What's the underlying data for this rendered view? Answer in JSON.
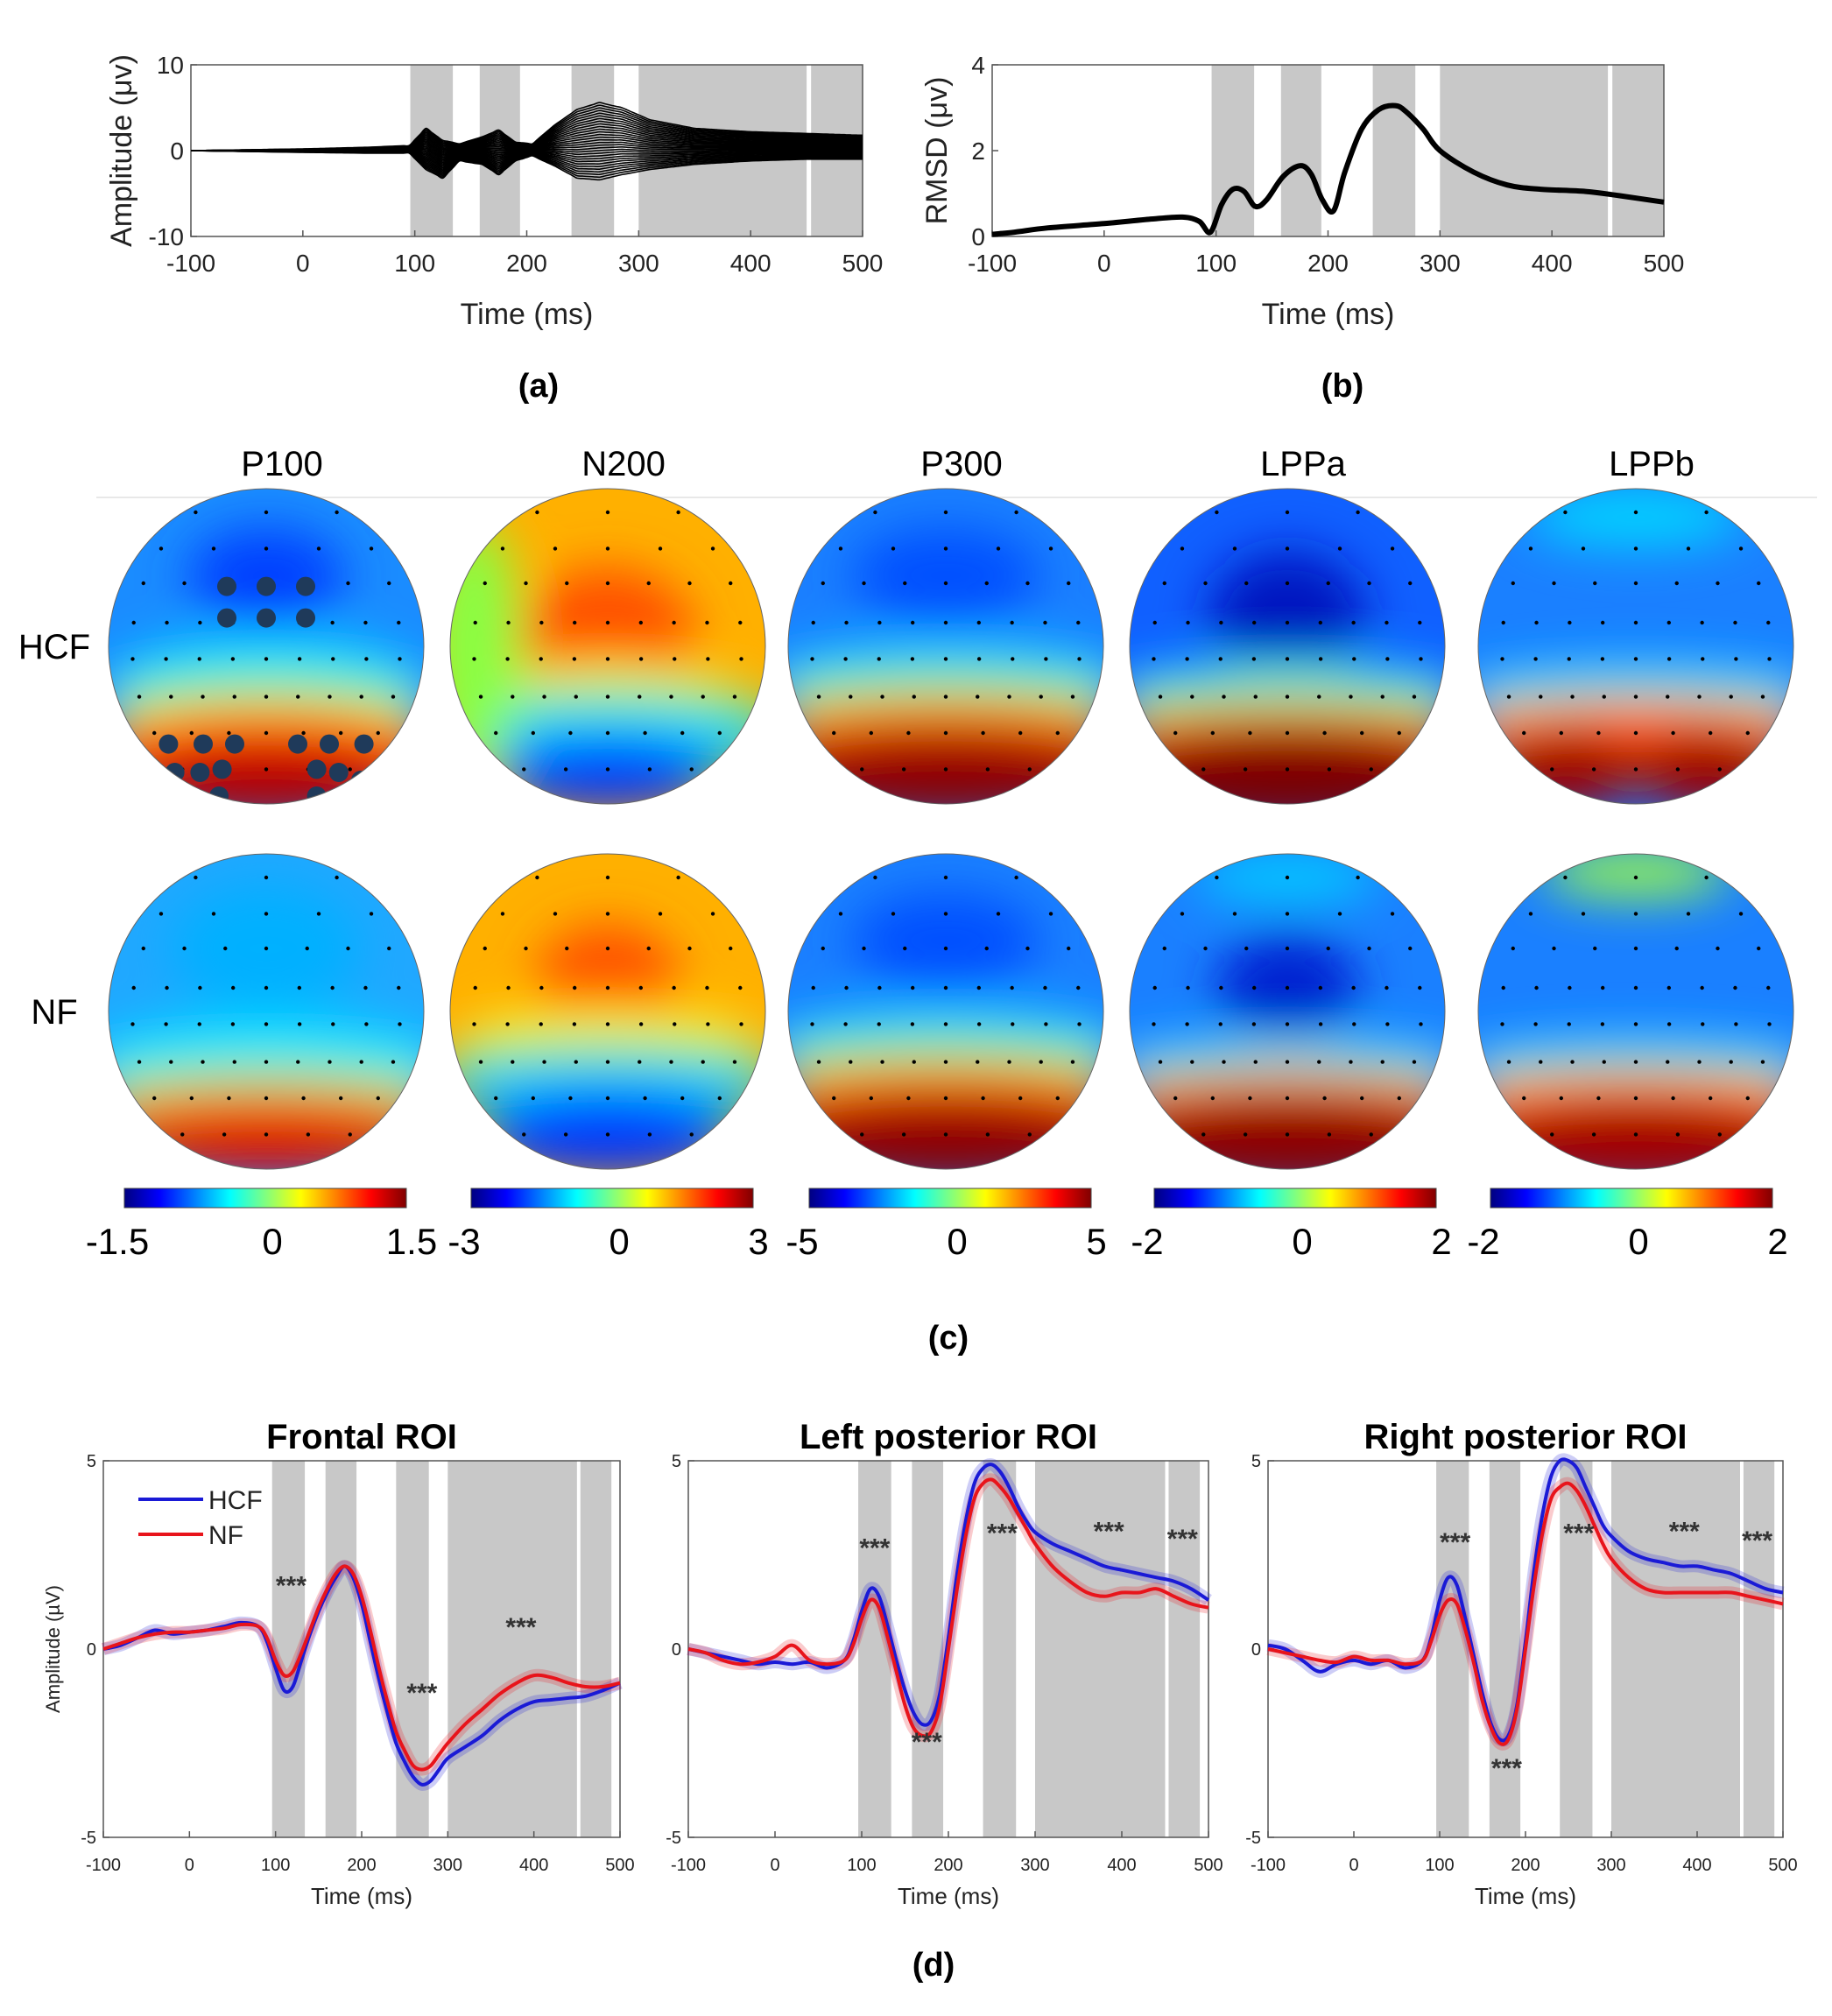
{
  "colors": {
    "hcf": "#1a1ad6",
    "nf": "#e8141b",
    "black": "#000000",
    "shade": "#c8c8c8",
    "jet_stops": [
      "#000080",
      "#0000ff",
      "#0080ff",
      "#00ffff",
      "#80ff80",
      "#ffff00",
      "#ff8000",
      "#ff0000",
      "#800000"
    ],
    "electrode": "#1f3a5a"
  },
  "panel_labels": {
    "a": "(a)",
    "b": "(b)",
    "c": "(c)",
    "d": "(d)"
  },
  "chart_data": [
    {
      "id": "a",
      "type": "line",
      "title": "",
      "xlabel": "Time (ms)",
      "ylabel": "Amplitude (μv)",
      "xlim": [
        -100,
        500
      ],
      "ylim": [
        -10,
        10
      ],
      "xticks": [
        -100,
        0,
        100,
        200,
        300,
        400,
        500
      ],
      "yticks": [
        -10,
        0,
        10
      ],
      "shaded_windows": [
        [
          96,
          134
        ],
        [
          158,
          194
        ],
        [
          240,
          278
        ],
        [
          300,
          450
        ],
        [
          454,
          500
        ]
      ],
      "description_series": "butterfly plot of all channels",
      "channel_count": 30,
      "envelope": {
        "x": [
          -100,
          0,
          60,
          95,
          110,
          125,
          140,
          160,
          175,
          190,
          205,
          225,
          245,
          265,
          285,
          310,
          350,
          400,
          450,
          500
        ],
        "upper": [
          0,
          0.2,
          0.4,
          0.6,
          2.6,
          1.2,
          0.8,
          1.6,
          2.4,
          1.0,
          0.8,
          3.0,
          4.8,
          5.6,
          5.0,
          3.6,
          2.6,
          2.2,
          2.0,
          1.8
        ],
        "lower": [
          0,
          -0.2,
          -0.3,
          -0.3,
          -2.2,
          -3.2,
          -1.2,
          -1.6,
          -2.8,
          -1.2,
          -0.6,
          -1.8,
          -3.2,
          -3.4,
          -2.8,
          -2.2,
          -1.6,
          -1.2,
          -1.0,
          -1.0
        ]
      }
    },
    {
      "id": "b",
      "type": "line",
      "title": "",
      "xlabel": "Time (ms)",
      "ylabel": "RMSD (μv)",
      "xlim": [
        -100,
        500
      ],
      "ylim": [
        0,
        4
      ],
      "xticks": [
        -100,
        0,
        100,
        200,
        300,
        400,
        500
      ],
      "yticks": [
        0,
        2,
        4
      ],
      "shaded_windows": [
        [
          96,
          134
        ],
        [
          158,
          194
        ],
        [
          240,
          278
        ],
        [
          300,
          450
        ],
        [
          454,
          500
        ]
      ],
      "series": [
        {
          "name": "RMSD",
          "x": [
            -100,
            -80,
            -50,
            0,
            40,
            70,
            85,
            95,
            105,
            115,
            125,
            135,
            145,
            160,
            175,
            185,
            195,
            205,
            215,
            230,
            245,
            260,
            270,
            285,
            300,
            330,
            360,
            390,
            430,
            460,
            500
          ],
          "y": [
            0.05,
            0.1,
            0.2,
            0.3,
            0.4,
            0.45,
            0.35,
            0.1,
            0.75,
            1.1,
            1.05,
            0.7,
            0.85,
            1.4,
            1.65,
            1.45,
            0.85,
            0.6,
            1.5,
            2.5,
            2.95,
            3.05,
            2.9,
            2.5,
            2.0,
            1.5,
            1.2,
            1.1,
            1.05,
            0.95,
            0.8
          ]
        }
      ]
    },
    {
      "id": "c",
      "type": "heatmap",
      "title": "",
      "columns": [
        "P100",
        "N200",
        "P300",
        "LPPa",
        "LPPb"
      ],
      "rows": [
        "HCF",
        "NF"
      ],
      "colorbars": [
        {
          "min": -1.5,
          "max": 1.5,
          "ticks": [
            "-1.5",
            "0",
            "1.5"
          ]
        },
        {
          "min": -3,
          "max": 3,
          "ticks": [
            "-3",
            "0",
            "3"
          ]
        },
        {
          "min": -5,
          "max": 5,
          "ticks": [
            "-5",
            "0",
            "5"
          ]
        },
        {
          "min": -2,
          "max": 2,
          "ticks": [
            "-2",
            "0",
            "2"
          ]
        },
        {
          "min": -2,
          "max": 2,
          "ticks": [
            "-2",
            "0",
            "2"
          ]
        }
      ]
    },
    {
      "id": "d1",
      "type": "line",
      "title": "Frontal ROI",
      "xlabel": "Time (ms)",
      "ylabel": "Amplitude (µV)",
      "xlim": [
        -100,
        500
      ],
      "ylim": [
        -5,
        5
      ],
      "xticks": [
        -100,
        0,
        100,
        200,
        300,
        400,
        500
      ],
      "yticks": [
        -5,
        0,
        5
      ],
      "shaded_windows": [
        [
          96,
          134
        ],
        [
          158,
          194
        ],
        [
          240,
          278
        ],
        [
          300,
          450
        ],
        [
          454,
          490
        ]
      ],
      "legend": [
        "HCF",
        "NF"
      ],
      "significance": [
        {
          "x": 118,
          "y": 1.45,
          "label": "***"
        },
        {
          "x": 270,
          "y": -1.4,
          "label": "***"
        },
        {
          "x": 385,
          "y": 0.35,
          "label": "***"
        }
      ],
      "series": [
        {
          "name": "HCF",
          "x": [
            -100,
            -80,
            -60,
            -40,
            -20,
            0,
            20,
            40,
            60,
            80,
            90,
            100,
            110,
            120,
            130,
            140,
            150,
            160,
            170,
            180,
            190,
            200,
            210,
            220,
            230,
            240,
            250,
            260,
            270,
            280,
            290,
            300,
            320,
            340,
            360,
            380,
            400,
            420,
            440,
            460,
            480,
            500
          ],
          "y": [
            0,
            0.1,
            0.3,
            0.5,
            0.4,
            0.45,
            0.5,
            0.6,
            0.7,
            0.6,
            0.2,
            -0.5,
            -1.1,
            -1.0,
            -0.3,
            0.4,
            1.0,
            1.5,
            1.9,
            2.2,
            1.9,
            1.2,
            0.2,
            -0.8,
            -1.7,
            -2.5,
            -3.0,
            -3.4,
            -3.6,
            -3.5,
            -3.2,
            -2.9,
            -2.6,
            -2.3,
            -1.9,
            -1.6,
            -1.4,
            -1.35,
            -1.3,
            -1.25,
            -1.1,
            -0.9
          ]
        },
        {
          "name": "NF",
          "x": [
            -100,
            -80,
            -60,
            -40,
            -20,
            0,
            20,
            40,
            60,
            80,
            90,
            100,
            110,
            120,
            130,
            140,
            150,
            160,
            170,
            180,
            190,
            200,
            210,
            220,
            230,
            240,
            250,
            260,
            270,
            280,
            290,
            300,
            320,
            340,
            360,
            380,
            400,
            420,
            440,
            460,
            480,
            500
          ],
          "y": [
            0,
            0.15,
            0.3,
            0.4,
            0.45,
            0.45,
            0.5,
            0.55,
            0.65,
            0.6,
            0.3,
            -0.3,
            -0.7,
            -0.6,
            -0.1,
            0.5,
            1.1,
            1.6,
            2.0,
            2.2,
            2.0,
            1.4,
            0.5,
            -0.5,
            -1.4,
            -2.2,
            -2.7,
            -3.1,
            -3.2,
            -3.1,
            -2.8,
            -2.5,
            -2.0,
            -1.6,
            -1.2,
            -0.9,
            -0.7,
            -0.75,
            -0.9,
            -1.0,
            -1.0,
            -0.9
          ]
        }
      ]
    },
    {
      "id": "d2",
      "type": "line",
      "title": "Left posterior ROI",
      "xlabel": "Time (ms)",
      "ylabel": "",
      "xlim": [
        -100,
        500
      ],
      "ylim": [
        -5,
        5
      ],
      "xticks": [
        -100,
        0,
        100,
        200,
        300,
        400,
        500
      ],
      "yticks": [
        -5,
        0,
        5
      ],
      "shaded_windows": [
        [
          96,
          134
        ],
        [
          158,
          194
        ],
        [
          240,
          278
        ],
        [
          300,
          450
        ],
        [
          454,
          490
        ]
      ],
      "significance": [
        {
          "x": 115,
          "y": 2.45,
          "label": "***"
        },
        {
          "x": 175,
          "y": -2.7,
          "label": "***"
        },
        {
          "x": 262,
          "y": 2.85,
          "label": "***"
        },
        {
          "x": 385,
          "y": 2.9,
          "label": "***"
        },
        {
          "x": 470,
          "y": 2.7,
          "label": "***"
        }
      ],
      "series": [
        {
          "name": "HCF",
          "x": [
            -100,
            -80,
            -60,
            -40,
            -20,
            0,
            20,
            40,
            60,
            80,
            90,
            100,
            110,
            120,
            130,
            140,
            150,
            160,
            170,
            180,
            190,
            200,
            210,
            220,
            230,
            240,
            250,
            260,
            270,
            280,
            290,
            300,
            320,
            340,
            360,
            380,
            400,
            420,
            440,
            460,
            480,
            500
          ],
          "y": [
            0,
            -0.1,
            -0.2,
            -0.3,
            -0.4,
            -0.35,
            -0.4,
            -0.35,
            -0.5,
            -0.3,
            0.2,
            1.0,
            1.6,
            1.4,
            0.6,
            -0.3,
            -1.1,
            -1.7,
            -2.0,
            -1.9,
            -1.2,
            0.3,
            2.0,
            3.4,
            4.4,
            4.8,
            4.9,
            4.7,
            4.3,
            3.8,
            3.4,
            3.1,
            2.8,
            2.6,
            2.4,
            2.2,
            2.1,
            2.0,
            1.9,
            1.8,
            1.6,
            1.3
          ]
        },
        {
          "name": "NF",
          "x": [
            -100,
            -80,
            -60,
            -40,
            -20,
            0,
            20,
            40,
            60,
            80,
            90,
            100,
            110,
            120,
            130,
            140,
            150,
            160,
            170,
            180,
            190,
            200,
            210,
            220,
            230,
            240,
            250,
            260,
            270,
            280,
            290,
            300,
            320,
            340,
            360,
            380,
            400,
            420,
            440,
            460,
            480,
            500
          ],
          "y": [
            0,
            -0.1,
            -0.3,
            -0.4,
            -0.35,
            -0.2,
            0.1,
            -0.3,
            -0.4,
            -0.3,
            0.1,
            0.8,
            1.3,
            1.1,
            0.3,
            -0.6,
            -1.5,
            -2.1,
            -2.3,
            -2.2,
            -1.5,
            0.0,
            1.6,
            3.0,
            4.0,
            4.4,
            4.5,
            4.3,
            4.0,
            3.6,
            3.2,
            2.8,
            2.2,
            1.8,
            1.5,
            1.4,
            1.5,
            1.5,
            1.6,
            1.4,
            1.2,
            1.1
          ]
        }
      ]
    },
    {
      "id": "d3",
      "type": "line",
      "title": "Right posterior ROI",
      "xlabel": "Time (ms)",
      "ylabel": "",
      "xlim": [
        -100,
        500
      ],
      "ylim": [
        -5,
        5
      ],
      "xticks": [
        -100,
        0,
        100,
        200,
        300,
        400,
        500
      ],
      "yticks": [
        -5,
        0,
        5
      ],
      "shaded_windows": [
        [
          96,
          134
        ],
        [
          158,
          194
        ],
        [
          240,
          278
        ],
        [
          300,
          450
        ],
        [
          454,
          490
        ]
      ],
      "significance": [
        {
          "x": 118,
          "y": 2.6,
          "label": "***"
        },
        {
          "x": 178,
          "y": -3.4,
          "label": "***"
        },
        {
          "x": 262,
          "y": 2.85,
          "label": "***"
        },
        {
          "x": 385,
          "y": 2.9,
          "label": "***"
        },
        {
          "x": 470,
          "y": 2.65,
          "label": "***"
        }
      ],
      "series": [
        {
          "name": "HCF",
          "x": [
            -100,
            -80,
            -60,
            -40,
            -20,
            0,
            20,
            40,
            60,
            80,
            90,
            100,
            110,
            120,
            130,
            140,
            150,
            160,
            170,
            180,
            190,
            200,
            210,
            220,
            230,
            240,
            250,
            260,
            270,
            280,
            290,
            300,
            320,
            340,
            360,
            380,
            400,
            420,
            440,
            460,
            480,
            500
          ],
          "y": [
            0.1,
            0.0,
            -0.3,
            -0.6,
            -0.4,
            -0.3,
            -0.4,
            -0.3,
            -0.5,
            -0.3,
            0.3,
            1.3,
            1.9,
            1.7,
            0.8,
            -0.2,
            -1.2,
            -2.0,
            -2.4,
            -2.3,
            -1.5,
            0.2,
            2.1,
            3.6,
            4.6,
            5.0,
            5.0,
            4.8,
            4.3,
            3.8,
            3.3,
            3.0,
            2.6,
            2.4,
            2.3,
            2.2,
            2.2,
            2.1,
            2.0,
            1.8,
            1.6,
            1.5
          ]
        },
        {
          "name": "NF",
          "x": [
            -100,
            -80,
            -60,
            -40,
            -20,
            0,
            20,
            40,
            60,
            80,
            90,
            100,
            110,
            120,
            130,
            140,
            150,
            160,
            170,
            180,
            190,
            200,
            210,
            220,
            230,
            240,
            250,
            260,
            270,
            280,
            290,
            300,
            320,
            340,
            360,
            380,
            400,
            420,
            440,
            460,
            480,
            500
          ],
          "y": [
            0.0,
            -0.1,
            -0.2,
            -0.3,
            -0.35,
            -0.2,
            -0.3,
            -0.3,
            -0.4,
            -0.3,
            0.2,
            0.9,
            1.3,
            1.2,
            0.5,
            -0.4,
            -1.4,
            -2.1,
            -2.5,
            -2.4,
            -1.6,
            0.0,
            1.7,
            3.1,
            4.0,
            4.3,
            4.4,
            4.2,
            3.8,
            3.3,
            2.8,
            2.4,
            1.9,
            1.6,
            1.5,
            1.5,
            1.5,
            1.5,
            1.5,
            1.4,
            1.3,
            1.2
          ]
        }
      ]
    }
  ]
}
